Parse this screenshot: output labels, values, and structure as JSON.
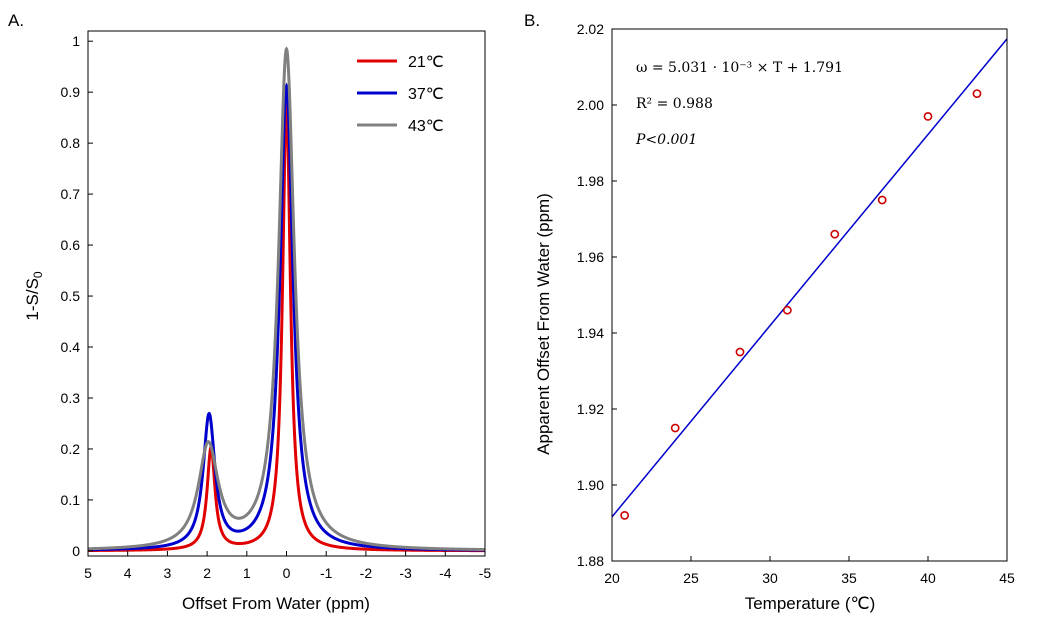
{
  "colors": {
    "red": "#e00000",
    "blue": "#0000cc",
    "gray": "#808080",
    "points": "#cc0000",
    "fit": "#0000cc"
  },
  "chart_data": [
    {
      "panel_label": "A.",
      "type": "line",
      "xlabel": "Offset From Water (ppm)",
      "ylabel_main": "1-S/S",
      "ylabel_sub": "0",
      "xlim": [
        5,
        -5
      ],
      "ylim": [
        -0.01,
        1.02
      ],
      "xticks": [
        5,
        4,
        3,
        2,
        1,
        0,
        -1,
        -2,
        -3,
        -4,
        -5
      ],
      "xtick_labels": [
        "5",
        "4",
        "3",
        "2",
        "1",
        "0",
        "-1",
        "-2",
        "-3",
        "-4",
        "-5"
      ],
      "yticks": [
        0,
        0.1,
        0.2,
        0.3,
        0.4,
        0.5,
        0.6,
        0.7,
        0.8,
        0.9,
        1
      ],
      "ytick_labels": [
        "0",
        "0.1",
        "0.2",
        "0.3",
        "0.4",
        "0.5",
        "0.6",
        "0.7",
        "0.8",
        "0.9",
        "1"
      ],
      "legend_position": "top-right",
      "series": [
        {
          "name": "21℃",
          "color": "#e00000",
          "water_amp": 0.88,
          "water_width": 0.12,
          "amide_center": 1.9,
          "amide_amp": 0.2,
          "amide_width": 0.12
        },
        {
          "name": "37℃",
          "color": "#0000cc",
          "water_amp": 0.91,
          "water_width": 0.2,
          "amide_center": 1.95,
          "amide_amp": 0.26,
          "amide_width": 0.18
        },
        {
          "name": "43℃",
          "color": "#808080",
          "water_amp": 0.98,
          "water_width": 0.24,
          "amide_center": 1.97,
          "amide_amp": 0.2,
          "amide_width": 0.3
        }
      ]
    },
    {
      "panel_label": "B.",
      "type": "scatter",
      "xlabel": "Temperature (℃)",
      "ylabel": "Apparent Offset From Water (ppm)",
      "xlim": [
        20,
        45
      ],
      "ylim": [
        1.88,
        2.02
      ],
      "xticks": [
        20,
        25,
        30,
        35,
        40,
        45
      ],
      "xtick_labels": [
        "20",
        "25",
        "30",
        "35",
        "40",
        "45"
      ],
      "yticks": [
        1.88,
        1.9,
        1.92,
        1.94,
        1.96,
        1.98,
        2.0,
        2.02
      ],
      "ytick_labels": [
        "1.88",
        "1.90",
        "1.92",
        "1.94",
        "1.96",
        "1.98",
        "2.00",
        "2.02"
      ],
      "x": [
        20.8,
        24.0,
        28.1,
        31.1,
        34.1,
        37.1,
        40.0,
        43.1
      ],
      "y": [
        1.892,
        1.915,
        1.935,
        1.946,
        1.966,
        1.975,
        1.997,
        2.003
      ],
      "fit": {
        "slope": 0.005031,
        "intercept": 1.791
      },
      "annotations": {
        "equation": "ω = 5.031 · 10⁻³ × T + 1.791",
        "r2": "R² = 0.988",
        "p": "P<0.001"
      }
    }
  ]
}
